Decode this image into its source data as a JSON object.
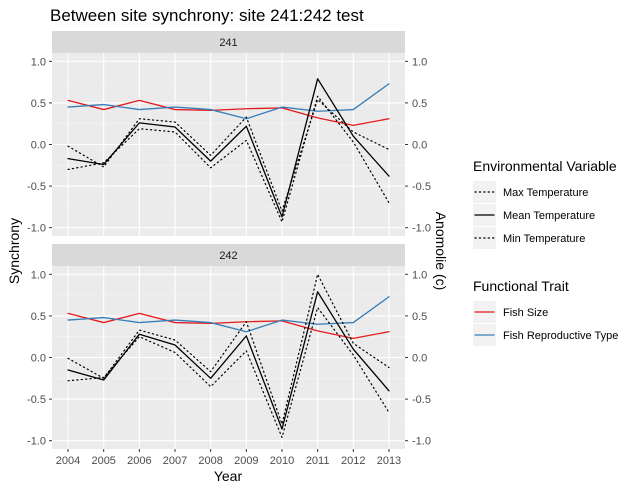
{
  "chart_data": {
    "type": "line",
    "title": "Between site synchrony: site 241:242 test",
    "xlabel": "Year",
    "ylabel": "Synchrony",
    "y2label": "Anomolie (c)",
    "x": [
      2004,
      2005,
      2006,
      2007,
      2008,
      2009,
      2010,
      2011,
      2012,
      2013
    ],
    "x_tick_labels": [
      "2004",
      "2005",
      "2006",
      "2007",
      "2008",
      "2009",
      "2010",
      "2011",
      "2012",
      "2013"
    ],
    "ylim": [
      -1.1,
      1.1
    ],
    "y_ticks": [
      -1.0,
      -0.5,
      0.0,
      0.5,
      1.0
    ],
    "y_tick_labels": [
      "-1.0",
      "-0.5",
      "0.0",
      "0.5",
      "1.0"
    ],
    "grid": true,
    "legend_groups": [
      {
        "title": "Environmental Variable",
        "items": [
          {
            "name": "Max Temperature",
            "style": "dotted",
            "color": "#000000"
          },
          {
            "name": "Mean Temperature",
            "style": "solid",
            "color": "#000000"
          },
          {
            "name": "Min Temperature",
            "style": "dotted",
            "color": "#000000"
          }
        ]
      },
      {
        "title": "Functional Trait",
        "items": [
          {
            "name": "Fish Size",
            "style": "solid",
            "color": "#e41a1c"
          },
          {
            "name": "Fish Reproductive Type",
            "style": "solid",
            "color": "#377eb8"
          }
        ]
      }
    ],
    "legend_position": "right",
    "panels": [
      {
        "strip": "241",
        "series": [
          {
            "name": "Fish Size",
            "color": "#e41a1c",
            "style": "solid",
            "values": [
              0.53,
              0.42,
              0.53,
              0.42,
              0.41,
              0.43,
              0.44,
              0.32,
              0.23,
              0.31
            ]
          },
          {
            "name": "Fish Reproductive Type",
            "color": "#377eb8",
            "style": "solid",
            "values": [
              0.45,
              0.48,
              0.42,
              0.45,
              0.42,
              0.31,
              0.45,
              0.4,
              0.42,
              0.73
            ]
          },
          {
            "name": "Mean Temperature",
            "color": "#000000",
            "style": "solid",
            "values": [
              -0.17,
              -0.24,
              0.26,
              0.21,
              -0.2,
              0.22,
              -0.87,
              0.79,
              0.1,
              -0.38
            ]
          },
          {
            "name": "Max Temperature",
            "color": "#000000",
            "style": "dotted",
            "values": [
              -0.02,
              -0.27,
              0.31,
              0.27,
              -0.13,
              0.33,
              -0.8,
              0.54,
              0.15,
              -0.06
            ]
          },
          {
            "name": "Min Temperature",
            "color": "#000000",
            "style": "dotted",
            "values": [
              -0.3,
              -0.22,
              0.19,
              0.15,
              -0.28,
              0.05,
              -0.93,
              0.58,
              0.03,
              -0.7
            ]
          }
        ]
      },
      {
        "strip": "242",
        "series": [
          {
            "name": "Fish Size",
            "color": "#e41a1c",
            "style": "solid",
            "values": [
              0.53,
              0.42,
              0.53,
              0.42,
              0.41,
              0.43,
              0.44,
              0.32,
              0.23,
              0.31
            ]
          },
          {
            "name": "Fish Reproductive Type",
            "color": "#377eb8",
            "style": "solid",
            "values": [
              0.45,
              0.48,
              0.42,
              0.45,
              0.42,
              0.31,
              0.45,
              0.4,
              0.42,
              0.73
            ]
          },
          {
            "name": "Mean Temperature",
            "color": "#000000",
            "style": "solid",
            "values": [
              -0.15,
              -0.27,
              0.28,
              0.15,
              -0.25,
              0.26,
              -0.86,
              0.79,
              0.1,
              -0.4
            ]
          },
          {
            "name": "Max Temperature",
            "color": "#000000",
            "style": "dotted",
            "values": [
              -0.01,
              -0.25,
              0.33,
              0.21,
              -0.17,
              0.43,
              -0.8,
              1.0,
              0.17,
              -0.12
            ]
          },
          {
            "name": "Min Temperature",
            "color": "#000000",
            "style": "dotted",
            "values": [
              -0.28,
              -0.24,
              0.25,
              0.06,
              -0.35,
              0.08,
              -0.96,
              0.6,
              0.03,
              -0.66
            ]
          }
        ]
      }
    ]
  }
}
